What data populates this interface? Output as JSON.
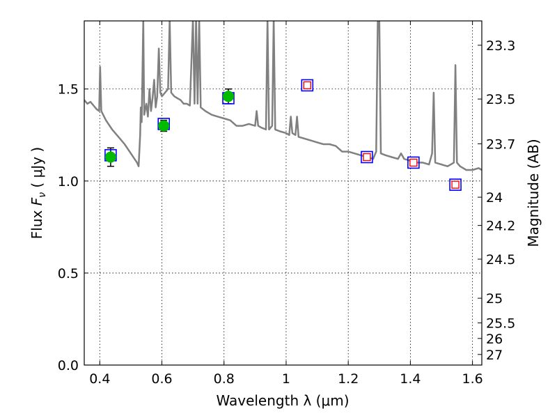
{
  "chart_data": {
    "type": "scatter",
    "xlabel": "Wavelength  λ (μm)",
    "ylabel": "Flux  F_ν  ( μJy )",
    "ylabel_parts": {
      "prefix": "Flux  ",
      "symbol": "F",
      "subscript": "ν",
      "suffix": "  ( μJy )"
    },
    "right_label": "Magnitude (AB)",
    "xlim": [
      0.35,
      1.63
    ],
    "ylim": [
      0.0,
      1.87
    ],
    "x_ticks": [
      0.4,
      0.6,
      0.8,
      1.0,
      1.2,
      1.4,
      1.6
    ],
    "x_tick_labels": [
      "0.4",
      "0.6",
      "0.8",
      "1",
      "1.2",
      "1.4",
      "1.6"
    ],
    "y_ticks": [
      0.0,
      0.5,
      1.0,
      1.5
    ],
    "y_tick_labels": [
      "0.0",
      "0.5",
      "1.0",
      "1.5"
    ],
    "right_ticks": [
      {
        "label": "23.3",
        "mag": 23.3
      },
      {
        "label": "23.5",
        "mag": 23.5
      },
      {
        "label": "23.7",
        "mag": 23.7
      },
      {
        "label": "24",
        "mag": 24.0
      },
      {
        "label": "24.2",
        "mag": 24.2
      },
      {
        "label": "24.5",
        "mag": 24.5
      },
      {
        "label": "25",
        "mag": 25.0
      },
      {
        "label": "25.5",
        "mag": 25.5
      },
      {
        "label": "26",
        "mag": 26.0
      },
      {
        "label": "27",
        "mag": 27.0
      }
    ],
    "grid": true,
    "colors": {
      "template": "#808080",
      "observed_fill": "#00bb00",
      "model_box": "#0000ff",
      "model_inner": "#ff0000",
      "error_bar": "#000000"
    },
    "series": [
      {
        "type": "line",
        "points": [
          [
            0.35,
            1.44
          ],
          [
            0.36,
            1.42
          ],
          [
            0.37,
            1.43
          ],
          [
            0.38,
            1.41
          ],
          [
            0.39,
            1.39
          ],
          [
            0.398,
            1.38
          ],
          [
            0.401,
            1.62
          ],
          [
            0.405,
            1.38
          ],
          [
            0.42,
            1.33
          ],
          [
            0.44,
            1.28
          ],
          [
            0.46,
            1.24
          ],
          [
            0.48,
            1.2
          ],
          [
            0.5,
            1.15
          ],
          [
            0.52,
            1.1
          ],
          [
            0.525,
            1.08
          ],
          [
            0.53,
            1.25
          ],
          [
            0.532,
            1.4
          ],
          [
            0.535,
            1.32
          ],
          [
            0.54,
            1.88
          ],
          [
            0.543,
            1.36
          ],
          [
            0.55,
            1.42
          ],
          [
            0.555,
            1.35
          ],
          [
            0.56,
            1.5
          ],
          [
            0.565,
            1.38
          ],
          [
            0.57,
            1.45
          ],
          [
            0.575,
            1.55
          ],
          [
            0.58,
            1.4
          ],
          [
            0.585,
            1.46
          ],
          [
            0.59,
            1.72
          ],
          [
            0.595,
            1.48
          ],
          [
            0.6,
            1.46
          ],
          [
            0.61,
            1.48
          ],
          [
            0.62,
            1.5
          ],
          [
            0.625,
            1.88
          ],
          [
            0.63,
            1.48
          ],
          [
            0.64,
            1.46
          ],
          [
            0.65,
            1.45
          ],
          [
            0.66,
            1.44
          ],
          [
            0.67,
            1.42
          ],
          [
            0.68,
            1.42
          ],
          [
            0.69,
            1.41
          ],
          [
            0.7,
            1.88
          ],
          [
            0.705,
            1.42
          ],
          [
            0.71,
            1.88
          ],
          [
            0.715,
            1.42
          ],
          [
            0.72,
            1.88
          ],
          [
            0.725,
            1.4
          ],
          [
            0.74,
            1.38
          ],
          [
            0.76,
            1.36
          ],
          [
            0.78,
            1.35
          ],
          [
            0.8,
            1.34
          ],
          [
            0.82,
            1.33
          ],
          [
            0.84,
            1.3
          ],
          [
            0.86,
            1.3
          ],
          [
            0.88,
            1.31
          ],
          [
            0.9,
            1.3
          ],
          [
            0.905,
            1.38
          ],
          [
            0.91,
            1.3
          ],
          [
            0.92,
            1.29
          ],
          [
            0.935,
            1.28
          ],
          [
            0.94,
            1.88
          ],
          [
            0.945,
            1.28
          ],
          [
            0.955,
            1.3
          ],
          [
            0.96,
            1.88
          ],
          [
            0.965,
            1.28
          ],
          [
            0.98,
            1.27
          ],
          [
            1.0,
            1.26
          ],
          [
            1.01,
            1.25
          ],
          [
            1.015,
            1.35
          ],
          [
            1.02,
            1.26
          ],
          [
            1.03,
            1.25
          ],
          [
            1.035,
            1.35
          ],
          [
            1.04,
            1.24
          ],
          [
            1.06,
            1.23
          ],
          [
            1.08,
            1.22
          ],
          [
            1.1,
            1.21
          ],
          [
            1.12,
            1.2
          ],
          [
            1.14,
            1.2
          ],
          [
            1.16,
            1.19
          ],
          [
            1.18,
            1.16
          ],
          [
            1.2,
            1.16
          ],
          [
            1.22,
            1.15
          ],
          [
            1.24,
            1.14
          ],
          [
            1.26,
            1.13
          ],
          [
            1.28,
            1.12
          ],
          [
            1.29,
            1.16
          ],
          [
            1.295,
            1.88
          ],
          [
            1.3,
            1.88
          ],
          [
            1.305,
            1.15
          ],
          [
            1.32,
            1.14
          ],
          [
            1.34,
            1.13
          ],
          [
            1.36,
            1.12
          ],
          [
            1.37,
            1.15
          ],
          [
            1.38,
            1.12
          ],
          [
            1.4,
            1.11
          ],
          [
            1.42,
            1.1
          ],
          [
            1.44,
            1.1
          ],
          [
            1.46,
            1.09
          ],
          [
            1.47,
            1.15
          ],
          [
            1.475,
            1.48
          ],
          [
            1.48,
            1.1
          ],
          [
            1.5,
            1.09
          ],
          [
            1.52,
            1.08
          ],
          [
            1.54,
            1.1
          ],
          [
            1.545,
            1.63
          ],
          [
            1.55,
            1.1
          ],
          [
            1.56,
            1.08
          ],
          [
            1.57,
            1.07
          ],
          [
            1.58,
            1.06
          ],
          [
            1.6,
            1.06
          ],
          [
            1.62,
            1.07
          ],
          [
            1.63,
            1.06
          ]
        ]
      },
      {
        "type": "scatter",
        "points": [
          {
            "x": 0.435,
            "y": 1.13,
            "yerr": 0.05
          },
          {
            "x": 0.606,
            "y": 1.3,
            "yerr": 0.03
          },
          {
            "x": 0.814,
            "y": 1.46,
            "yerr": 0.04
          }
        ]
      },
      {
        "type": "scatter",
        "points": [
          {
            "x": 0.435,
            "y": 1.14
          },
          {
            "x": 0.606,
            "y": 1.31
          },
          {
            "x": 0.814,
            "y": 1.45
          }
        ]
      },
      {
        "type": "scatter",
        "points": [
          {
            "x": 1.068,
            "y": 1.52
          },
          {
            "x": 1.26,
            "y": 1.13
          },
          {
            "x": 1.41,
            "y": 1.1
          },
          {
            "x": 1.545,
            "y": 0.98
          }
        ]
      }
    ]
  }
}
